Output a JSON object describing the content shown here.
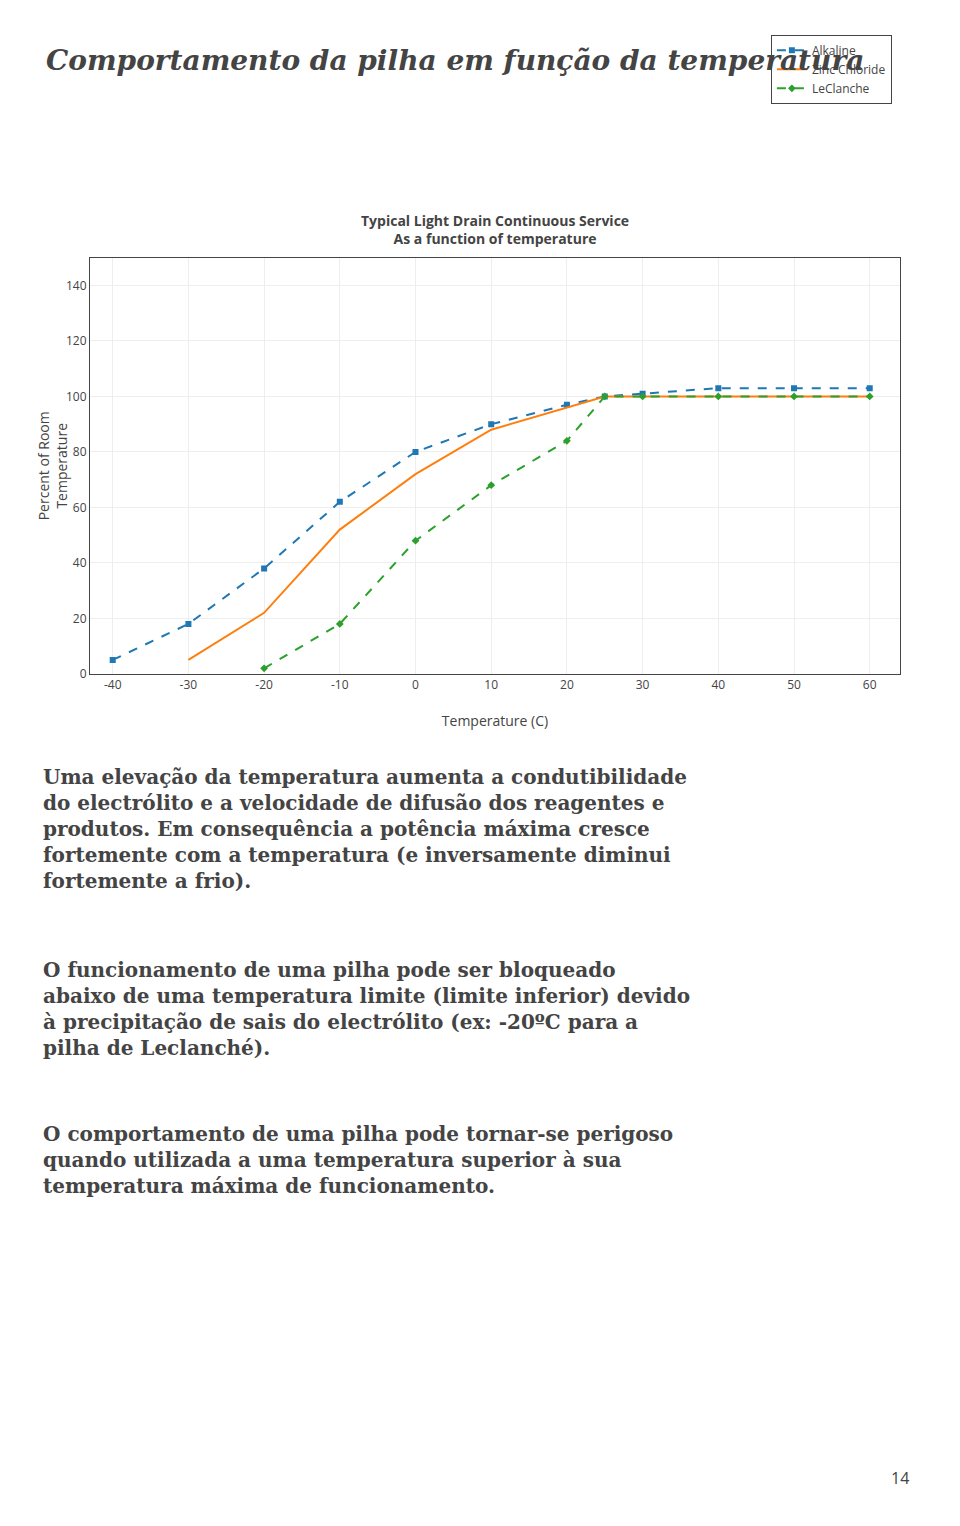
{
  "chart_data": {
    "type": "line",
    "title": "Typical Light Drain Continuous Service\nAs a function of temperature",
    "x_label": "Temperature (C)",
    "y_label": "Percent of Room\nTemperature",
    "xlim": [
      -43,
      64
    ],
    "ylim": [
      0,
      150
    ],
    "xticks": [
      -40,
      -30,
      -20,
      -10,
      0,
      10,
      20,
      30,
      40,
      50,
      60
    ],
    "yticks": [
      0,
      20,
      40,
      60,
      80,
      100,
      120,
      140
    ],
    "grid": true,
    "legend": "upper right",
    "series": [
      {
        "name": "Alkaline",
        "marker": "square",
        "line_style": "dash",
        "x": [
          -40,
          -30,
          -20,
          -10,
          0,
          10,
          20,
          25,
          30,
          40,
          50,
          60
        ],
        "values": [
          5,
          18,
          38,
          62,
          80,
          90,
          97,
          100,
          101,
          103,
          103,
          103
        ]
      },
      {
        "name": "Zinc Chloride",
        "line_style": "solid",
        "x": [
          -30,
          -20,
          -10,
          0,
          10,
          20,
          25,
          30,
          40,
          50,
          60
        ],
        "values": [
          5,
          22,
          52,
          72,
          88,
          96,
          100,
          100,
          100,
          100,
          100
        ]
      },
      {
        "name": "LeClanche",
        "marker": "diamond",
        "line_style": "dash",
        "x": [
          -20,
          -10,
          0,
          10,
          20,
          25,
          30,
          40,
          50,
          60
        ],
        "values": [
          2,
          18,
          48,
          68,
          84,
          100,
          100,
          100,
          100,
          100
        ]
      }
    ],
    "annotations": [
      "Comportamento da pilha em função da temperatura",
      "Uma elevação da temperatura aumenta a condutibilidade\ndo electrólito e a velocidade de difusão dos reagentes e\nprodutos. Em consequência a potência máxima cresce\nfortemente com a temperatura (e inversamente diminui\nfortemente a frio).",
      "O funcionamento de uma pilha pode ser bloqueado\nabaixo de uma temperatura limite (limite inferior) devido\nà precipitação de sais do electrólito (ex: -20ºC para a\npilha de Leclanché).",
      "O comportamento de uma pilha pode tornar-se perigoso\nquando utilizada a uma temperatura superior à sua\ntemperatura máxima de funcionamento.",
      "14"
    ]
  }
}
